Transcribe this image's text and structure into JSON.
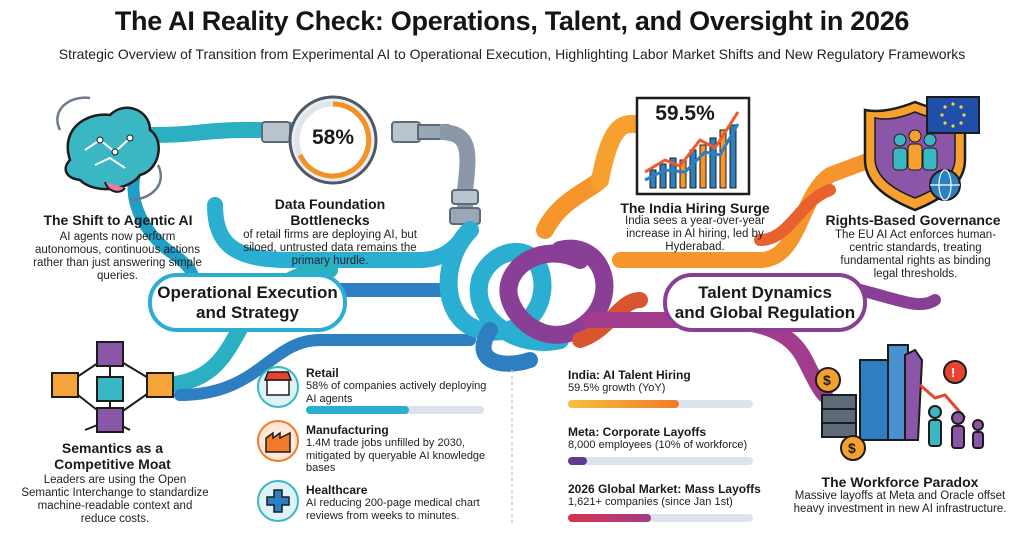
{
  "title": "The AI Reality Check: Operations, Talent, and Oversight in 2026",
  "subtitle": "Strategic Overview of Transition from Experimental AI to Operational Execution, Highlighting Labor Market Shifts and New Regulatory Frameworks",
  "left_section": {
    "title": "Operational Execution\nand Strategy"
  },
  "right_section": {
    "title": "Talent Dynamics\nand Global Regulation"
  },
  "agentic": {
    "heading": "The Shift to Agentic AI",
    "body": "AI agents now perform autonomous, continuous actions rather than just answering simple queries."
  },
  "data_foundation": {
    "stat": "58%",
    "heading": "Data Foundation Bottlenecks",
    "body": "of retail firms are deploying AI, but siloed, untrusted data remains the primary hurdle."
  },
  "semantics": {
    "heading": "Semantics as a Competitive Moat",
    "body": "Leaders are using the Open Semantic Interchange to standardize machine-readable context and reduce costs."
  },
  "india_surge": {
    "stat": "59.5%",
    "heading": "The India Hiring Surge",
    "body": "India sees a year-over-year increase in AI hiring, led by Hyderabad."
  },
  "rights": {
    "heading": "Rights-Based Governance",
    "body": "The EU AI Act enforces human-centric standards, treating fundamental rights as binding legal thresholds."
  },
  "paradox": {
    "heading": "The Workforce Paradox",
    "body": "Massive layoffs at Meta and Oracle offset heavy investment in new AI infrastructure."
  },
  "sectors": [
    {
      "name": "Retail",
      "desc": "58% of companies actively deploying AI agents",
      "icon": "store-icon",
      "level": 0.58
    },
    {
      "name": "Manufacturing",
      "desc": "1.4M trade jobs unfilled by 2030, mitigated by queryable AI knowledge bases",
      "icon": "factory-icon"
    },
    {
      "name": "Healthcare",
      "desc": "AI reducing 200-page medical chart reviews from weeks to minutes.",
      "icon": "medical-cross-icon"
    }
  ],
  "metrics": [
    {
      "name": "India: AI Talent Hiring",
      "desc": "59.5% growth (YoY)",
      "level": 0.6
    },
    {
      "name": "Meta: Corporate Layoffs",
      "desc": "8,000 employees (10% of workforce)",
      "level": 0.1
    },
    {
      "name": "2026 Global Market: Mass Layoffs",
      "desc": "1,621+ companies (since Jan 1st)",
      "level": 0.45
    }
  ],
  "colors": {
    "teal": "#1aa7b8",
    "blue": "#2d7fc1",
    "orange": "#f6952b",
    "purple": "#8a3f96",
    "magenta": "#b13d8d",
    "dark": "#1b1b1b"
  }
}
